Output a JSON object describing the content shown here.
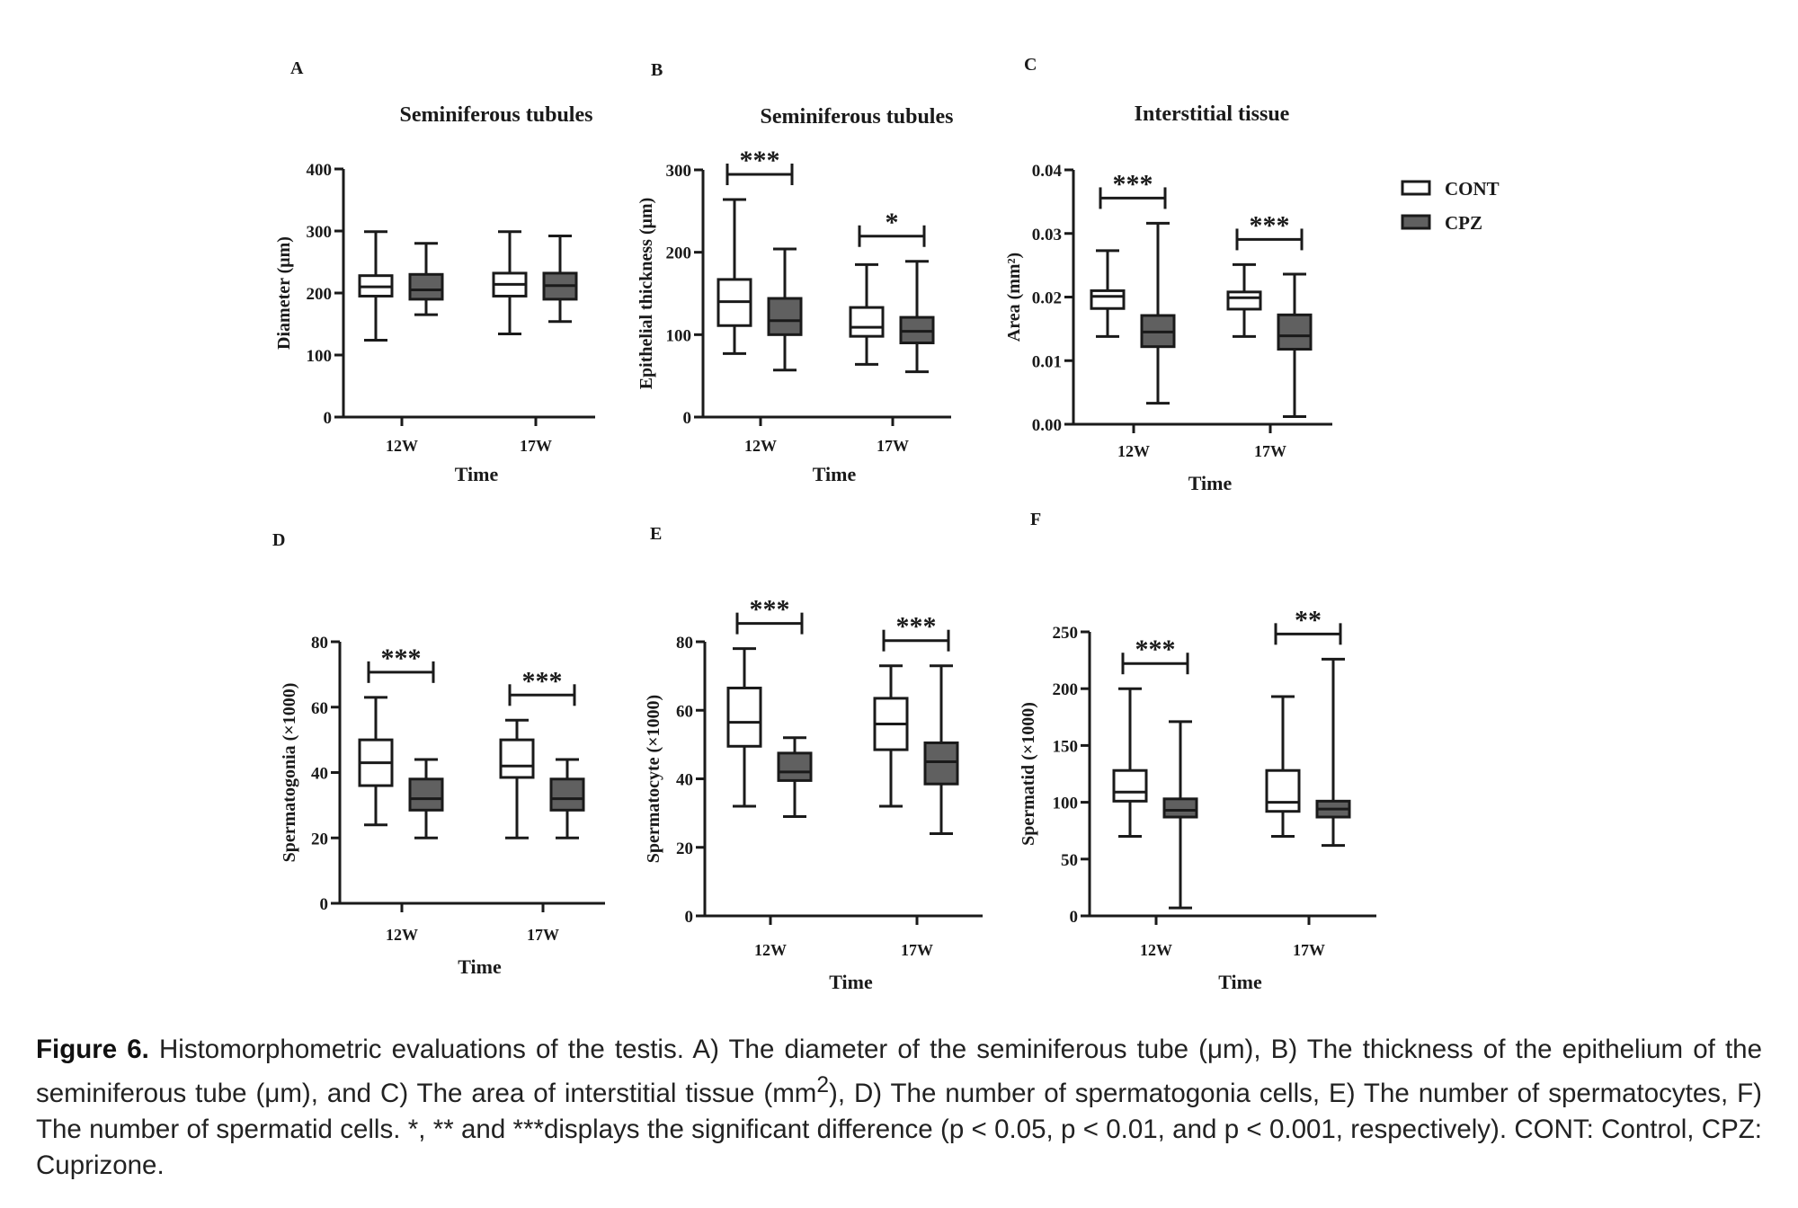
{
  "figure_label": "Figure 6.",
  "caption_parts": {
    "p1": " Histomorphometric evaluations of the testis. A) The diameter of the seminiferous tube (μm), B) The thickness of the epithelium of the seminiferous tube (μm), and C) The area of interstitial tissue (mm",
    "sup": "2",
    "p2": "), D) The number of spermatogonia cells, E) The number of spermatocytes, F) The number of spermatid cells. *, ** and ***displays the significant difference (p < 0.05, p < 0.01, and p < 0.001, respectively). CONT: Control, CPZ: Cuprizone."
  },
  "legend": {
    "items": [
      {
        "label": "CONT",
        "color": "#ffffff"
      },
      {
        "label": "CPZ",
        "color": "#606060"
      }
    ]
  },
  "chart_data": [
    {
      "panel": "A",
      "type": "boxplot",
      "title": "Seminiferous tubules",
      "xlabel": "Time",
      "ylabel": "Diameter (μm)",
      "categories": [
        "12W",
        "17W"
      ],
      "ylim": [
        0,
        400
      ],
      "yticks": [
        0,
        100,
        200,
        300,
        400
      ],
      "ytick_labels": [
        "0",
        "100",
        "200",
        "300",
        "400"
      ],
      "series": [
        {
          "name": "CONT",
          "boxes": [
            {
              "min": 124,
              "q1": 195,
              "median": 210,
              "q3": 228,
              "max": 299
            },
            {
              "min": 134,
              "q1": 195,
              "median": 214,
              "q3": 232,
              "max": 299
            }
          ]
        },
        {
          "name": "CPZ",
          "boxes": [
            {
              "min": 165,
              "q1": 190,
              "median": 205,
              "q3": 230,
              "max": 280
            },
            {
              "min": 154,
              "q1": 190,
              "median": 212,
              "q3": 232,
              "max": 292
            }
          ]
        }
      ],
      "significance": [
        null,
        null
      ]
    },
    {
      "panel": "B",
      "type": "boxplot",
      "title": "Seminiferous tubules",
      "xlabel": "Time",
      "ylabel": "Epithelial thickness (μm)",
      "categories": [
        "12W",
        "17W"
      ],
      "ylim": [
        0,
        300
      ],
      "yticks": [
        0,
        100,
        200,
        300
      ],
      "ytick_labels": [
        "0",
        "100",
        "200",
        "300"
      ],
      "series": [
        {
          "name": "CONT",
          "boxes": [
            {
              "min": 77,
              "q1": 111,
              "median": 140,
              "q3": 167,
              "max": 264
            },
            {
              "min": 64,
              "q1": 98,
              "median": 109,
              "q3": 133,
              "max": 185
            }
          ]
        },
        {
          "name": "CPZ",
          "boxes": [
            {
              "min": 57,
              "q1": 100,
              "median": 117,
              "q3": 144,
              "max": 204
            },
            {
              "min": 55,
              "q1": 90,
              "median": 104,
              "q3": 121,
              "max": 189
            }
          ]
        }
      ],
      "significance": [
        "***",
        "*"
      ]
    },
    {
      "panel": "C",
      "type": "boxplot",
      "title": "Interstitial tissue",
      "xlabel": "Time",
      "ylabel": "Area (mm²)",
      "categories": [
        "12W",
        "17W"
      ],
      "ylim": [
        0,
        0.04
      ],
      "yticks": [
        0,
        0.01,
        0.02,
        0.03,
        0.04
      ],
      "ytick_labels": [
        "0.00",
        "0.01",
        "0.02",
        "0.03",
        "0.04"
      ],
      "series": [
        {
          "name": "CONT",
          "boxes": [
            {
              "min": 0.0138,
              "q1": 0.0182,
              "median": 0.0201,
              "q3": 0.021,
              "max": 0.0273
            },
            {
              "min": 0.0138,
              "q1": 0.0181,
              "median": 0.0199,
              "q3": 0.0208,
              "max": 0.0251
            }
          ]
        },
        {
          "name": "CPZ",
          "boxes": [
            {
              "min": 0.0033,
              "q1": 0.0122,
              "median": 0.0145,
              "q3": 0.0171,
              "max": 0.0316
            },
            {
              "min": 0.0012,
              "q1": 0.0118,
              "median": 0.0139,
              "q3": 0.0172,
              "max": 0.0236
            }
          ]
        }
      ],
      "significance": [
        "***",
        "***"
      ]
    },
    {
      "panel": "D",
      "type": "boxplot",
      "title": "",
      "xlabel": "Time",
      "ylabel": "Spermatogonia (×1000)",
      "categories": [
        "12W",
        "17W"
      ],
      "ylim": [
        0,
        80
      ],
      "yticks": [
        0,
        20,
        40,
        60,
        80
      ],
      "ytick_labels": [
        "0",
        "20",
        "40",
        "60",
        "80"
      ],
      "series": [
        {
          "name": "CONT",
          "boxes": [
            {
              "min": 24,
              "q1": 36,
              "median": 43,
              "q3": 50,
              "max": 63
            },
            {
              "min": 20,
              "q1": 38.5,
              "median": 42,
              "q3": 50,
              "max": 56
            }
          ]
        },
        {
          "name": "CPZ",
          "boxes": [
            {
              "min": 20,
              "q1": 28.5,
              "median": 32,
              "q3": 38,
              "max": 44
            },
            {
              "min": 20,
              "q1": 28.5,
              "median": 32,
              "q3": 38,
              "max": 44
            }
          ]
        }
      ],
      "significance": [
        "***",
        "***"
      ]
    },
    {
      "panel": "E",
      "type": "boxplot",
      "title": "",
      "xlabel": "Time",
      "ylabel": "Spermatocyte (×1000)",
      "categories": [
        "12W",
        "17W"
      ],
      "ylim": [
        0,
        80
      ],
      "yticks": [
        0,
        20,
        40,
        60,
        80
      ],
      "ytick_labels": [
        "0",
        "20",
        "40",
        "60",
        "80"
      ],
      "series": [
        {
          "name": "CONT",
          "boxes": [
            {
              "min": 32,
              "q1": 49.5,
              "median": 56.5,
              "q3": 66.5,
              "max": 78
            },
            {
              "min": 32,
              "q1": 48.5,
              "median": 56,
              "q3": 63.5,
              "max": 73
            }
          ]
        },
        {
          "name": "CPZ",
          "boxes": [
            {
              "min": 29,
              "q1": 39.5,
              "median": 42,
              "q3": 47.5,
              "max": 52
            },
            {
              "min": 24,
              "q1": 38.5,
              "median": 45,
              "q3": 50.5,
              "max": 73
            }
          ]
        }
      ],
      "significance": [
        "***",
        "***"
      ]
    },
    {
      "panel": "F",
      "type": "boxplot",
      "title": "",
      "xlabel": "Time",
      "ylabel": "Spermatid (×1000)",
      "categories": [
        "12W",
        "17W"
      ],
      "ylim": [
        0,
        250
      ],
      "yticks": [
        0,
        50,
        100,
        150,
        200,
        250
      ],
      "ytick_labels": [
        "0",
        "50",
        "100",
        "150",
        "200",
        "250"
      ],
      "series": [
        {
          "name": "CONT",
          "boxes": [
            {
              "min": 70,
              "q1": 101,
              "median": 109,
              "q3": 128,
              "max": 200
            },
            {
              "min": 70,
              "q1": 92,
              "median": 100,
              "q3": 128,
              "max": 193
            }
          ]
        },
        {
          "name": "CPZ",
          "boxes": [
            {
              "min": 7,
              "q1": 87,
              "median": 93,
              "q3": 103,
              "max": 171
            },
            {
              "min": 62,
              "q1": 87,
              "median": 94,
              "q3": 101,
              "max": 226
            }
          ]
        }
      ],
      "significance": [
        "***",
        "**"
      ]
    }
  ]
}
